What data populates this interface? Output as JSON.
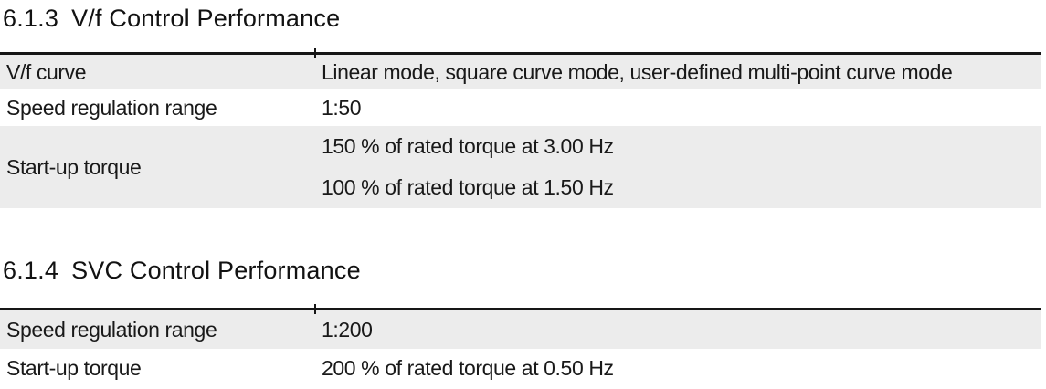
{
  "colors": {
    "row_shade": "#ececec",
    "table_border": "#161616",
    "text": "#191919"
  },
  "sections": [
    {
      "heading_number": "6.1.3",
      "heading_title": "V/f Control Performance",
      "table": {
        "rows": [
          {
            "label": "V/f curve",
            "values": [
              "Linear mode, square curve mode, user-defined multi-point curve mode"
            ],
            "shaded": true
          },
          {
            "label": "Speed regulation range",
            "values": [
              "1:50"
            ],
            "shaded": false
          },
          {
            "label": "Start-up torque",
            "values": [
              "150 % of rated torque at 3.00 Hz",
              "100 % of rated torque at 1.50 Hz"
            ],
            "shaded": true
          }
        ]
      }
    },
    {
      "heading_number": "6.1.4",
      "heading_title": "SVC Control Performance",
      "table": {
        "rows": [
          {
            "label": "Speed regulation range",
            "values": [
              "1:200"
            ],
            "shaded": true
          },
          {
            "label": "Start-up torque",
            "values": [
              "200 % of rated torque at 0.50 Hz"
            ],
            "shaded": false
          }
        ]
      }
    }
  ]
}
